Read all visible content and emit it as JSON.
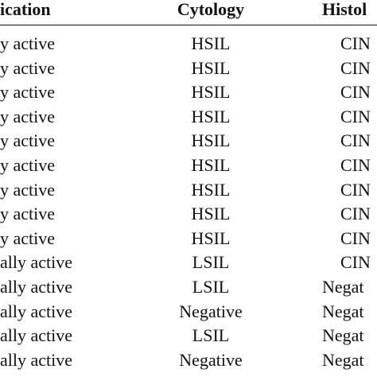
{
  "table": {
    "header": [
      "ication",
      "Cytology",
      "Histol"
    ],
    "rows": [
      [
        "y active",
        "HSIL",
        "CIN"
      ],
      [
        "y active",
        "HSIL",
        "CIN"
      ],
      [
        "y active",
        "HSIL",
        "CIN"
      ],
      [
        "y active",
        "HSIL",
        "CIN"
      ],
      [
        "y active",
        "HSIL",
        "CIN"
      ],
      [
        "y active",
        "HSIL",
        "CIN"
      ],
      [
        "y active",
        "HSIL",
        "CIN"
      ],
      [
        "y active",
        "HSIL",
        "CIN"
      ],
      [
        "y active",
        "HSIL",
        "CIN"
      ],
      [
        "ally active",
        "LSIL",
        "CIN"
      ],
      [
        "ally active",
        "LSIL",
        "Negat"
      ],
      [
        "ally active",
        "Negative",
        "Negat"
      ],
      [
        "ally active",
        "LSIL",
        "Negat"
      ],
      [
        "ally active",
        "Negative",
        "Negat"
      ]
    ]
  }
}
